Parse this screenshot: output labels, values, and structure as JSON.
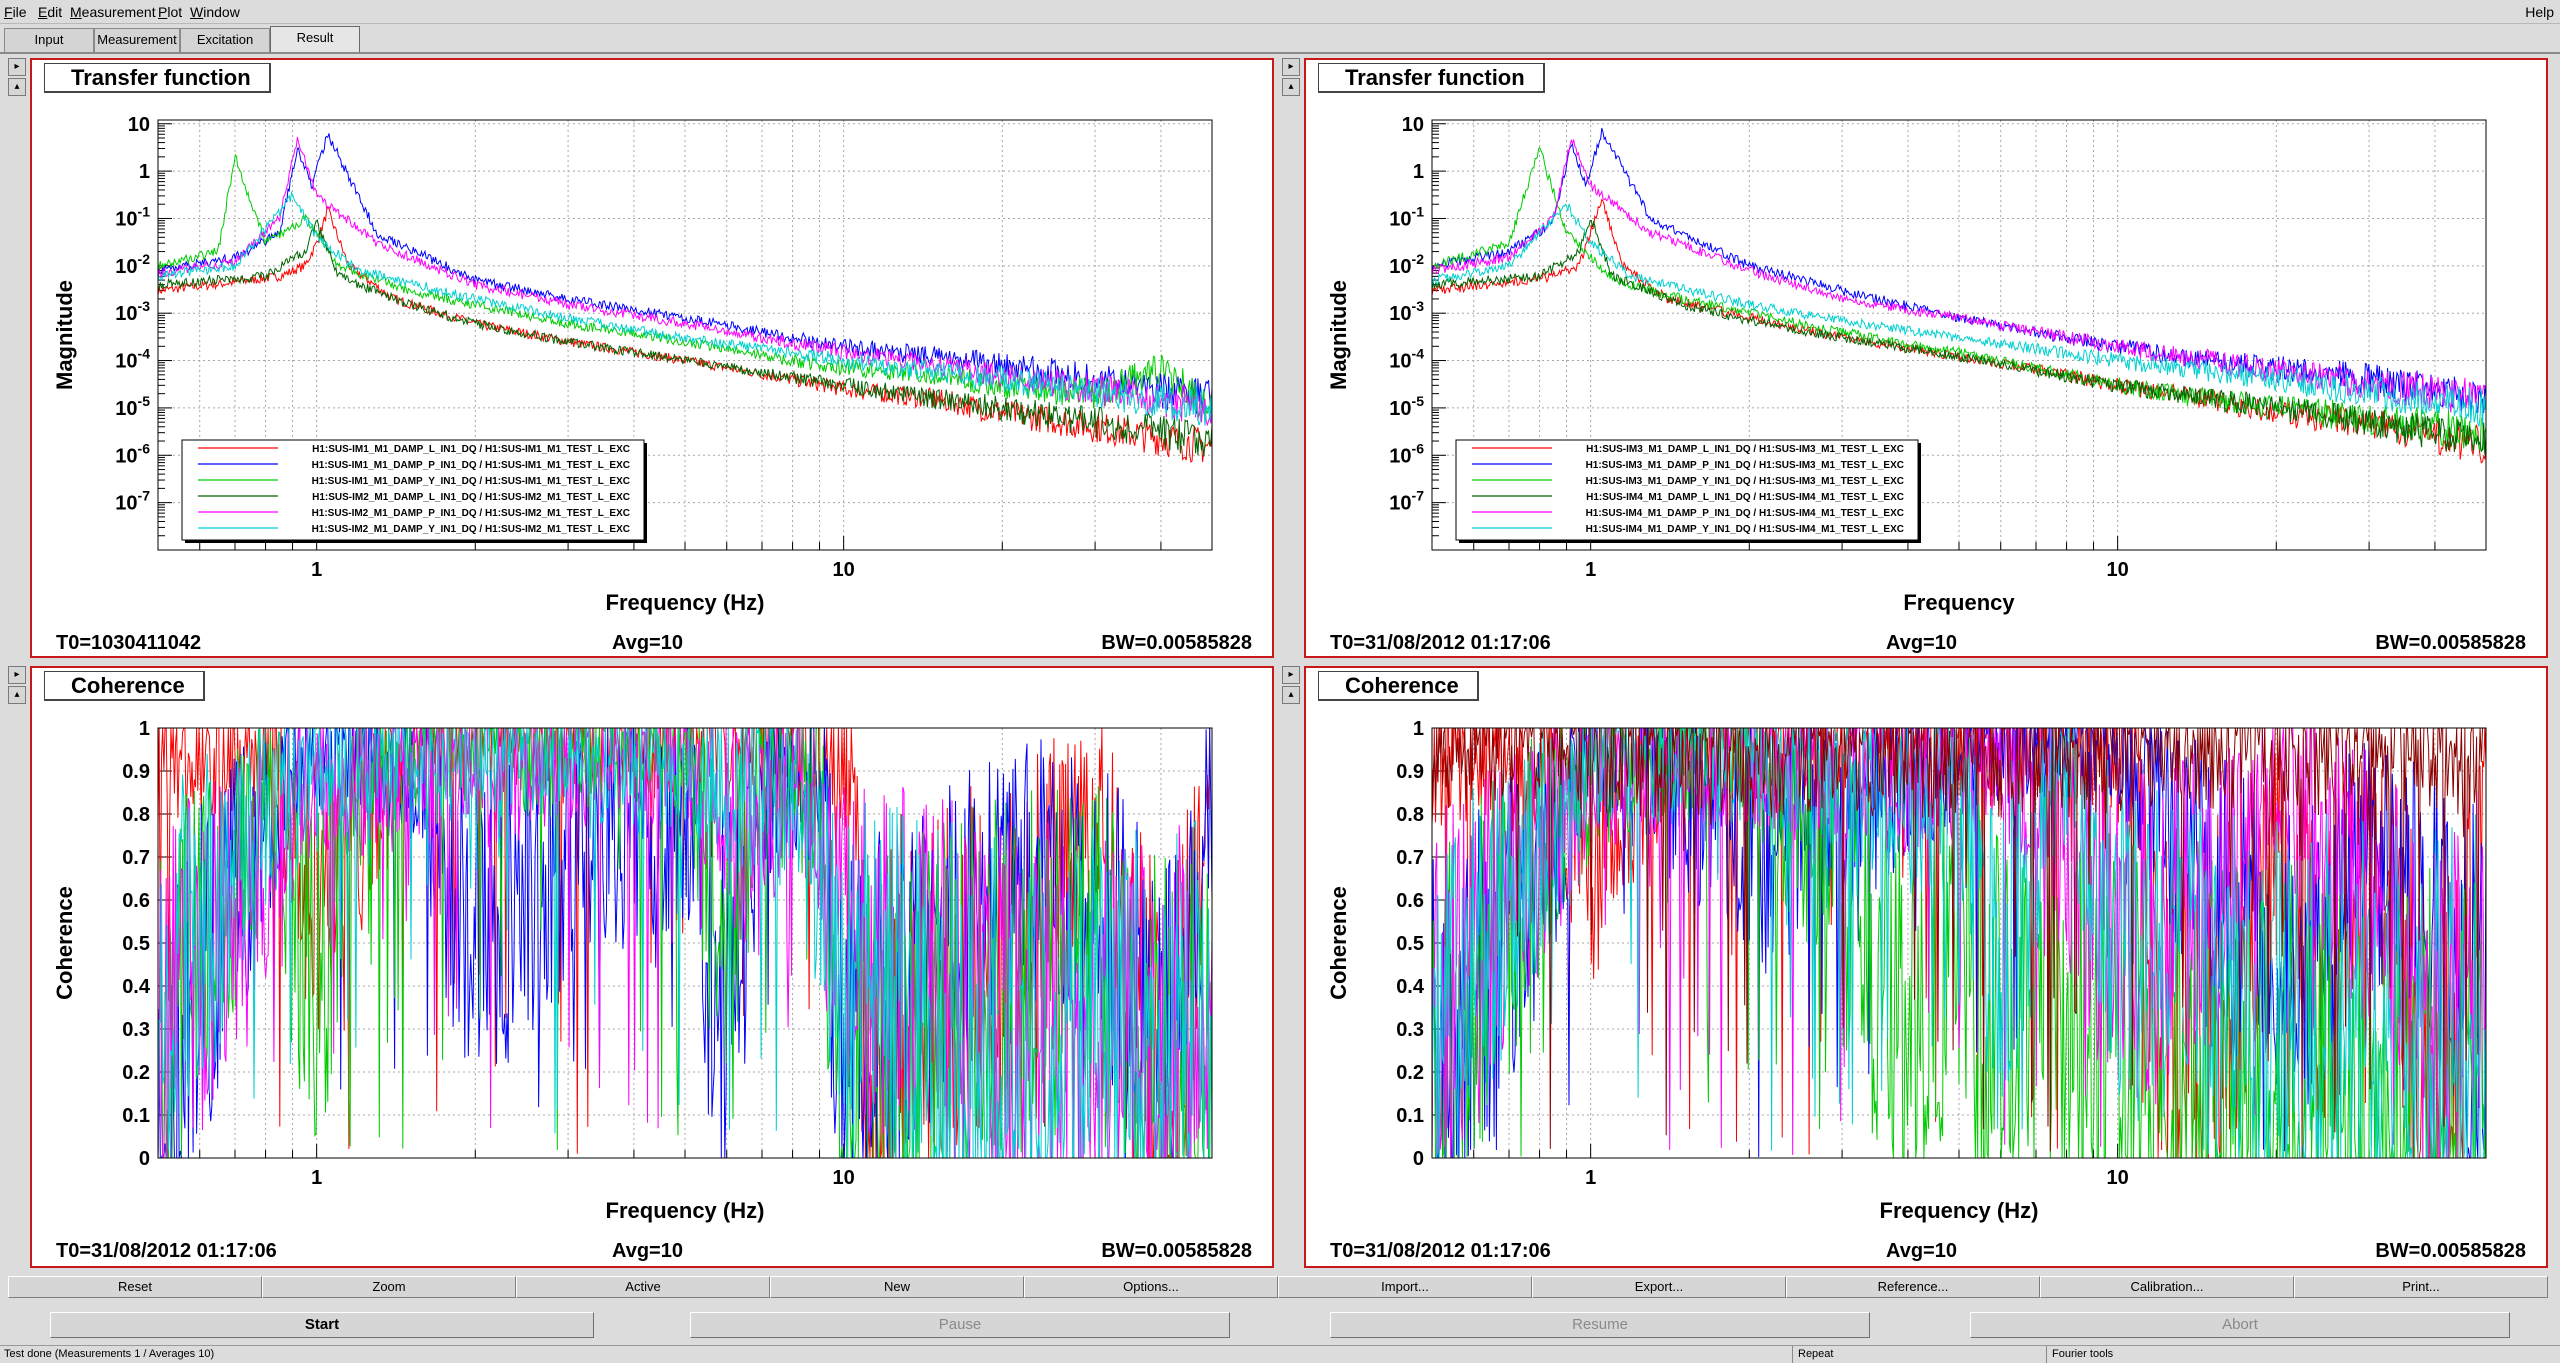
{
  "menu": [
    "File",
    "Edit",
    "Measurement",
    "Plot",
    "Window"
  ],
  "menu_underline": [
    "F",
    "E",
    "M",
    "P",
    "W"
  ],
  "help": "Help",
  "tabs": [
    {
      "label": "Input",
      "active": false
    },
    {
      "label": "Measurement",
      "active": false
    },
    {
      "label": "Excitation",
      "active": false
    },
    {
      "label": "Result",
      "active": true
    }
  ],
  "pad_arrows": [
    "▸",
    "▴"
  ],
  "panels": [
    {
      "id": "tf-left",
      "title": "Transfer function",
      "t0": "T0=1030411042",
      "avg": "Avg=10",
      "bw": "BW=0.00585828",
      "chart": {
        "type": "line",
        "xlabel": "Frequency (Hz)",
        "ylabel": "Magnitude",
        "xscale": "log",
        "yscale": "log",
        "xlim": [
          0.5,
          50
        ],
        "ylim": [
          1e-08,
          12
        ],
        "x_ticks": [
          1,
          10
        ],
        "y_tick_labels": [
          "10",
          "1",
          "10-1",
          "10-2",
          "10-3",
          "10-4",
          "10-5",
          "10-6",
          "10-7"
        ],
        "legend_placement": "lower-left",
        "series": [
          {
            "name": "H1:SUS-IM1_M1_DAMP_L_IN1_DQ / H1:SUS-IM1_M1_TEST_L_EXC",
            "color": "#ff0000",
            "x": [
              0.5,
              0.7,
              0.85,
              0.95,
              1.0,
              1.05,
              1.15,
              1.4,
              2,
              3,
              5,
              8,
              10,
              15,
              20,
              30,
              50
            ],
            "y": [
              0.003,
              0.0045,
              0.006,
              0.01,
              0.03,
              0.15,
              0.01,
              0.002,
              0.0006,
              0.00025,
              0.0001,
              4e-05,
              2.5e-05,
              1.5e-05,
              8e-06,
              4e-06,
              1.5e-06
            ]
          },
          {
            "name": "H1:SUS-IM1_M1_DAMP_P_IN1_DQ / H1:SUS-IM1_M1_TEST_L_EXC",
            "color": "#0000ff",
            "x": [
              0.5,
              0.7,
              0.85,
              0.92,
              0.98,
              1.05,
              1.3,
              2,
              3,
              5,
              8,
              10,
              15,
              20,
              30,
              50
            ],
            "y": [
              0.008,
              0.015,
              0.05,
              3,
              0.5,
              6,
              0.05,
              0.005,
              0.002,
              0.0008,
              0.0003,
              0.0002,
              0.00012,
              8e-05,
              4e-05,
              1.5e-05
            ]
          },
          {
            "name": "H1:SUS-IM1_M1_DAMP_Y_IN1_DQ / H1:SUS-IM1_M1_TEST_L_EXC",
            "color": "#00cc00",
            "x": [
              0.5,
              0.65,
              0.7,
              0.8,
              0.95,
              1.1,
              1.5,
              2,
              3,
              5,
              8,
              10,
              15,
              20,
              30,
              40,
              50
            ],
            "y": [
              0.01,
              0.02,
              2,
              0.03,
              0.1,
              0.01,
              0.003,
              0.0015,
              0.0006,
              0.00025,
              0.0001,
              7e-05,
              5e-05,
              3e-05,
              2e-05,
              6e-05,
              1e-05
            ]
          },
          {
            "name": "H1:SUS-IM2_M1_DAMP_L_IN1_DQ / H1:SUS-IM2_M1_TEST_L_EXC",
            "color": "#006400",
            "x": [
              0.5,
              0.8,
              0.95,
              1.0,
              1.1,
              1.5,
              2,
              3,
              5,
              10,
              20,
              50
            ],
            "y": [
              0.004,
              0.006,
              0.02,
              0.08,
              0.006,
              0.0015,
              0.0006,
              0.00025,
              0.0001,
              3e-05,
              1e-05,
              2e-06
            ]
          },
          {
            "name": "H1:SUS-IM2_M1_DAMP_P_IN1_DQ / H1:SUS-IM2_M1_TEST_L_EXC",
            "color": "#ff00ff",
            "x": [
              0.5,
              0.7,
              0.85,
              0.92,
              1.0,
              1.3,
              2,
              3,
              5,
              10,
              20,
              50
            ],
            "y": [
              0.007,
              0.012,
              0.1,
              5,
              0.3,
              0.03,
              0.004,
              0.0015,
              0.0006,
              0.00015,
              5e-05,
              1e-05
            ]
          },
          {
            "name": "H1:SUS-IM2_M1_DAMP_Y_IN1_DQ / H1:SUS-IM2_M1_TEST_L_EXC",
            "color": "#00d0d0",
            "x": [
              0.5,
              0.7,
              0.9,
              1.0,
              1.2,
              2,
              3,
              5,
              10,
              20,
              50
            ],
            "y": [
              0.006,
              0.01,
              0.3,
              0.04,
              0.008,
              0.002,
              0.0008,
              0.0003,
              0.0001,
              4e-05,
              1e-05
            ]
          }
        ]
      }
    },
    {
      "id": "tf-right",
      "title": "Transfer function",
      "t0": "T0=31/08/2012 01:17:06",
      "avg": "Avg=10",
      "bw": "BW=0.00585828",
      "chart": {
        "type": "line",
        "xlabel": "Frequency",
        "ylabel": "Magnitude",
        "xscale": "log",
        "yscale": "log",
        "xlim": [
          0.5,
          50
        ],
        "ylim": [
          1e-08,
          12
        ],
        "x_ticks": [
          1,
          10
        ],
        "y_tick_labels": [
          "10",
          "1",
          "10-1",
          "10-2",
          "10-3",
          "10-4",
          "10-5",
          "10-6",
          "10-7"
        ],
        "legend_placement": "lower-left",
        "series": [
          {
            "name": "H1:SUS-IM3_M1_DAMP_L_IN1_DQ / H1:SUS-IM3_M1_TEST_L_EXC",
            "color": "#ff0000",
            "x": [
              0.5,
              0.7,
              0.85,
              0.95,
              1.0,
              1.05,
              1.15,
              1.4,
              2,
              3,
              5,
              8,
              10,
              15,
              20,
              30,
              50
            ],
            "y": [
              0.003,
              0.0045,
              0.006,
              0.01,
              0.05,
              0.25,
              0.01,
              0.002,
              0.0008,
              0.0003,
              0.00012,
              5e-05,
              3e-05,
              1.5e-05,
              8e-06,
              5e-06,
              1.5e-06
            ]
          },
          {
            "name": "H1:SUS-IM3_M1_DAMP_P_IN1_DQ / H1:SUS-IM3_M1_TEST_L_EXC",
            "color": "#0000ff",
            "x": [
              0.5,
              0.7,
              0.85,
              0.92,
              0.98,
              1.05,
              1.3,
              2,
              3,
              5,
              8,
              10,
              15,
              20,
              30,
              50
            ],
            "y": [
              0.01,
              0.02,
              0.08,
              4,
              0.5,
              7,
              0.1,
              0.01,
              0.003,
              0.0008,
              0.0003,
              0.0002,
              0.0001,
              7e-05,
              4e-05,
              1.5e-05
            ]
          },
          {
            "name": "H1:SUS-IM3_M1_DAMP_Y_IN1_DQ / H1:SUS-IM3_M1_TEST_L_EXC",
            "color": "#00cc00",
            "x": [
              0.5,
              0.7,
              0.8,
              0.9,
              1.1,
              1.5,
              2,
              3,
              5,
              8,
              10,
              15,
              20,
              30,
              50
            ],
            "y": [
              0.01,
              0.03,
              3,
              0.05,
              0.005,
              0.002,
              0.001,
              0.0004,
              0.00015,
              5e-05,
              3e-05,
              1.5e-05,
              1e-05,
              6e-06,
              3e-06
            ]
          },
          {
            "name": "H1:SUS-IM4_M1_DAMP_L_IN1_DQ / H1:SUS-IM4_M1_TEST_L_EXC",
            "color": "#006400",
            "x": [
              0.5,
              0.8,
              0.95,
              1.0,
              1.1,
              1.5,
              2,
              3,
              5,
              10,
              20,
              50
            ],
            "y": [
              0.004,
              0.006,
              0.02,
              0.1,
              0.006,
              0.0015,
              0.0007,
              0.0003,
              0.00012,
              3e-05,
              1e-05,
              2e-06
            ]
          },
          {
            "name": "H1:SUS-IM4_M1_DAMP_P_IN1_DQ / H1:SUS-IM4_M1_TEST_L_EXC",
            "color": "#ff00ff",
            "x": [
              0.5,
              0.7,
              0.85,
              0.92,
              1.0,
              1.3,
              2,
              3,
              5,
              10,
              20,
              50
            ],
            "y": [
              0.008,
              0.015,
              0.1,
              5,
              0.5,
              0.05,
              0.008,
              0.002,
              0.0008,
              0.0002,
              6e-05,
              1.5e-05
            ]
          },
          {
            "name": "H1:SUS-IM4_M1_DAMP_Y_IN1_DQ / H1:SUS-IM4_M1_TEST_L_EXC",
            "color": "#00d0d0",
            "x": [
              0.5,
              0.7,
              0.9,
              1.0,
              1.2,
              2,
              3,
              5,
              10,
              20,
              50
            ],
            "y": [
              0.005,
              0.01,
              0.2,
              0.03,
              0.006,
              0.0015,
              0.0007,
              0.0003,
              0.0001,
              4e-05,
              1e-05
            ]
          }
        ]
      }
    },
    {
      "id": "coh-left",
      "title": "Coherence",
      "t0": "T0=31/08/2012 01:17:06",
      "avg": "Avg=10",
      "bw": "BW=0.00585828",
      "chart": {
        "type": "line",
        "xlabel": "Frequency (Hz)",
        "ylabel": "Coherence",
        "xscale": "log",
        "yscale": "linear",
        "xlim": [
          0.5,
          50
        ],
        "ylim": [
          0,
          1
        ],
        "x_ticks": [
          1,
          10
        ],
        "y_ticks": [
          0,
          0.1,
          0.2,
          0.3,
          0.4,
          0.5,
          0.6,
          0.7,
          0.8,
          0.9,
          1
        ],
        "series": [
          {
            "color": "#ff0000",
            "x": [
              0.5,
              0.8,
              1,
              1.5,
              3,
              6,
              9,
              10.5,
              11,
              15,
              20,
              30,
              40,
              45,
              50
            ],
            "y": [
              0.95,
              0.96,
              0.6,
              0.98,
              0.99,
              0.99,
              0.97,
              0.9,
              0.2,
              0.4,
              0.5,
              0.8,
              0.1,
              0.4,
              0.95
            ]
          },
          {
            "color": "#0000ff",
            "x": [
              0.5,
              0.6,
              0.7,
              0.9,
              1.1,
              1.5,
              2,
              3,
              5,
              6,
              7,
              9,
              10,
              15,
              20,
              30,
              40,
              50
            ],
            "y": [
              0.1,
              0.4,
              0.6,
              0.95,
              0.98,
              0.9,
              0.5,
              0.7,
              0.8,
              0.3,
              0.85,
              0.9,
              0.1,
              0.5,
              0.7,
              0.6,
              0.2,
              0.8
            ]
          },
          {
            "color": "#00cc00",
            "x": [
              0.5,
              0.6,
              0.8,
              1,
              1.3,
              2,
              3,
              4,
              5,
              6,
              7,
              9,
              10,
              15,
              20,
              30,
              40,
              50
            ],
            "y": [
              0.2,
              0.5,
              0.8,
              0.4,
              0.97,
              0.98,
              0.95,
              0.98,
              0.97,
              0.4,
              0.9,
              0.8,
              0.1,
              0.3,
              0.4,
              0.5,
              0.1,
              0.3
            ]
          },
          {
            "color": "#ff00ff",
            "x": [
              0.5,
              0.8,
              1,
              2,
              5,
              7,
              8,
              10,
              20,
              40,
              50
            ],
            "y": [
              0.3,
              0.7,
              0.9,
              0.9,
              0.95,
              0.7,
              0.95,
              0.5,
              0.3,
              0.2,
              0.5
            ]
          },
          {
            "color": "#00d0d0",
            "x": [
              0.5,
              0.8,
              1,
              2,
              3,
              5,
              8,
              10,
              20,
              50
            ],
            "y": [
              0.4,
              0.8,
              0.95,
              0.95,
              0.97,
              0.9,
              0.85,
              0.4,
              0.2,
              0.3
            ]
          }
        ]
      }
    },
    {
      "id": "coh-right",
      "title": "Coherence",
      "t0": "T0=31/08/2012 01:17:06",
      "avg": "Avg=10",
      "bw": "BW=0.00585828",
      "chart": {
        "type": "line",
        "xlabel": "Frequency (Hz)",
        "ylabel": "Coherence",
        "xscale": "log",
        "yscale": "linear",
        "xlim": [
          0.5,
          50
        ],
        "ylim": [
          0,
          1
        ],
        "x_ticks": [
          1,
          10
        ],
        "y_ticks": [
          0,
          0.1,
          0.2,
          0.3,
          0.4,
          0.5,
          0.6,
          0.7,
          0.8,
          0.9,
          1
        ],
        "series": [
          {
            "color": "#ff0000",
            "x": [
              0.5,
              0.8,
              1,
              1.5,
              3,
              6,
              9,
              11,
              12,
              15,
              20,
              25,
              30,
              40,
              45,
              50
            ],
            "y": [
              0.95,
              0.93,
              0.7,
              0.99,
              0.99,
              0.99,
              0.98,
              0.9,
              0.2,
              0.3,
              0.7,
              0.4,
              0.8,
              0.1,
              0.3,
              0.95
            ]
          },
          {
            "color": "#0000ff",
            "x": [
              0.5,
              0.7,
              1,
              1.3,
              2,
              3,
              5,
              6,
              8,
              10,
              15,
              20,
              30,
              40,
              50
            ],
            "y": [
              0.1,
              0.5,
              0.95,
              0.9,
              0.7,
              0.8,
              0.95,
              0.98,
              0.99,
              0.98,
              0.6,
              0.4,
              0.7,
              0.5,
              0.3
            ]
          },
          {
            "color": "#00cc00",
            "x": [
              0.5,
              0.6,
              0.8,
              1,
              1.5,
              2,
              3,
              4,
              5,
              6,
              7,
              9,
              10,
              15,
              20,
              50
            ],
            "y": [
              0.2,
              0.4,
              0.7,
              0.9,
              0.95,
              0.96,
              0.6,
              0.3,
              0.5,
              0.2,
              0.4,
              0.3,
              0.2,
              0.1,
              0.1,
              0.1
            ]
          },
          {
            "color": "#ff00ff",
            "x": [
              0.5,
              0.7,
              1,
              2,
              4,
              6,
              10,
              15,
              20,
              30,
              40,
              50
            ],
            "y": [
              0.3,
              0.6,
              0.9,
              0.95,
              0.9,
              0.95,
              0.5,
              0.6,
              0.9,
              0.6,
              0.2,
              0.5
            ]
          },
          {
            "color": "#00d0d0",
            "x": [
              0.5,
              0.8,
              1,
              2,
              3,
              5,
              6,
              8,
              10,
              20,
              50
            ],
            "y": [
              0.3,
              0.7,
              0.95,
              0.95,
              0.9,
              0.8,
              0.5,
              0.9,
              0.5,
              0.3,
              0.3
            ]
          },
          {
            "color": "#8b0000",
            "x": [
              0.5,
              0.7,
              1
            ],
            "y": [
              0.97,
              0.99,
              0.96
            ]
          }
        ]
      }
    }
  ],
  "buttons_row1": [
    "Reset",
    "Zoom",
    "Active",
    "New",
    "Options...",
    "Import...",
    "Export...",
    "Reference...",
    "Calibration...",
    "Print..."
  ],
  "buttons_row2": [
    {
      "label": "Start",
      "enabled": true
    },
    {
      "label": "Pause",
      "enabled": false
    },
    {
      "label": "Resume",
      "enabled": false
    },
    {
      "label": "Abort",
      "enabled": false
    }
  ],
  "status": {
    "message": "Test done (Measurements 1 / Averages 10)",
    "mode": "Repeat",
    "tools": "Fourier tools"
  }
}
